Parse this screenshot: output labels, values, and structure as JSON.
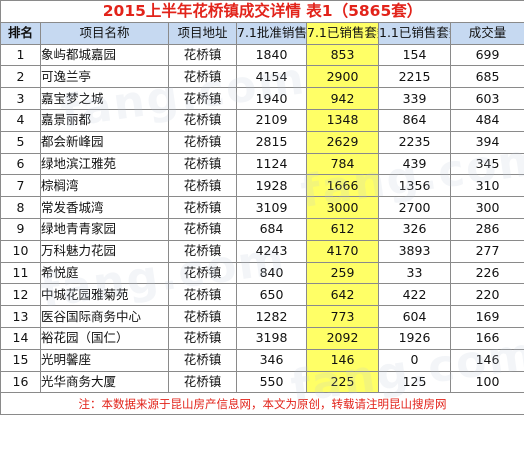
{
  "table": {
    "title": "2015上半年花桥镇成交详情 表1（5865套）",
    "headers": {
      "rank": "排名",
      "project_name": "项目名称",
      "project_address": "项目地址",
      "approved_units": "7.1批准销售套数",
      "sold_units_71": "7.1已销售套数",
      "sold_units_11": "1.1已销售套数",
      "deal_volume": "成交量"
    },
    "rows": [
      {
        "rank": "1",
        "name": "象屿都城嘉园",
        "address": "花桥镇",
        "approved": "1840",
        "sold71": "853",
        "sold11": "154",
        "deals": "699"
      },
      {
        "rank": "2",
        "name": "可逸兰亭",
        "address": "花桥镇",
        "approved": "4154",
        "sold71": "2900",
        "sold11": "2215",
        "deals": "685"
      },
      {
        "rank": "3",
        "name": "嘉宝梦之城",
        "address": "花桥镇",
        "approved": "1940",
        "sold71": "942",
        "sold11": "339",
        "deals": "603"
      },
      {
        "rank": "4",
        "name": "嘉景丽都",
        "address": "花桥镇",
        "approved": "2109",
        "sold71": "1348",
        "sold11": "864",
        "deals": "484"
      },
      {
        "rank": "5",
        "name": "都会新峰园",
        "address": "花桥镇",
        "approved": "2815",
        "sold71": "2629",
        "sold11": "2235",
        "deals": "394"
      },
      {
        "rank": "6",
        "name": "绿地滨江雅苑",
        "address": "花桥镇",
        "approved": "1124",
        "sold71": "784",
        "sold11": "439",
        "deals": "345"
      },
      {
        "rank": "7",
        "name": "棕榈湾",
        "address": "花桥镇",
        "approved": "1928",
        "sold71": "1666",
        "sold11": "1356",
        "deals": "310"
      },
      {
        "rank": "8",
        "name": "常发香城湾",
        "address": "花桥镇",
        "approved": "3109",
        "sold71": "3000",
        "sold11": "2700",
        "deals": "300"
      },
      {
        "rank": "9",
        "name": "绿地青青家园",
        "address": "花桥镇",
        "approved": "684",
        "sold71": "612",
        "sold11": "326",
        "deals": "286"
      },
      {
        "rank": "10",
        "name": "万科魅力花园",
        "address": "花桥镇",
        "approved": "4243",
        "sold71": "4170",
        "sold11": "3893",
        "deals": "277"
      },
      {
        "rank": "11",
        "name": "希悦庭",
        "address": "花桥镇",
        "approved": "840",
        "sold71": "259",
        "sold11": "33",
        "deals": "226"
      },
      {
        "rank": "12",
        "name": "中城花园雅菊苑",
        "address": "花桥镇",
        "approved": "650",
        "sold71": "642",
        "sold11": "422",
        "deals": "220"
      },
      {
        "rank": "13",
        "name": "医谷国际商务中心",
        "address": "花桥镇",
        "approved": "1282",
        "sold71": "773",
        "sold11": "604",
        "deals": "169"
      },
      {
        "rank": "14",
        "name": "裕花园（国仁）",
        "address": "花桥镇",
        "approved": "3198",
        "sold71": "2092",
        "sold11": "1926",
        "deals": "166"
      },
      {
        "rank": "15",
        "name": "光明馨座",
        "address": "花桥镇",
        "approved": "346",
        "sold71": "146",
        "sold11": "0",
        "deals": "146"
      },
      {
        "rank": "16",
        "name": "光华商务大厦",
        "address": "花桥镇",
        "approved": "550",
        "sold71": "225",
        "sold11": "125",
        "deals": "100"
      }
    ],
    "footnote": "注：本数据来源于昆山房产信息网，本文为原创，转载请注明昆山搜房网"
  },
  "watermarks": [
    "fang.com",
    "fang.com",
    "fang.com",
    "fang.com"
  ],
  "colors": {
    "title": "#e2231a",
    "header_bg": "#c6d9f1",
    "highlight_col": "#ffff66",
    "footnote": "#e2231a",
    "grid": "#8a8a8a"
  }
}
